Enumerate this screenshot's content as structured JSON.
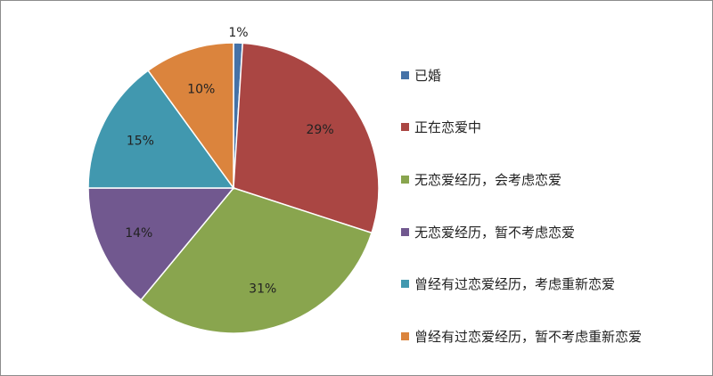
{
  "chart_data": {
    "type": "pie",
    "title": "",
    "start_angle": "12 o'clock, clockwise",
    "legend_position": "right",
    "slices": [
      {
        "label": "已婚",
        "value": 1,
        "data_label": "1%",
        "color": "#4572A7"
      },
      {
        "label": "正在恋爱中",
        "value": 29,
        "data_label": "29%",
        "color": "#AA4643"
      },
      {
        "label": "无恋爱经历，会考虑恋爱",
        "value": 31,
        "data_label": "31%",
        "color": "#89A54E"
      },
      {
        "label": "无恋爱经历，暂不考虑恋爱",
        "value": 14,
        "data_label": "14%",
        "color": "#71588F"
      },
      {
        "label": "曾经有过恋爱经历，考虑重新恋爱",
        "value": 15,
        "data_label": "15%",
        "color": "#4198AF"
      },
      {
        "label": "曾经有过恋爱经历，暂不考虑重新恋爱",
        "value": 10,
        "data_label": "10%",
        "color": "#DB843D"
      }
    ]
  }
}
